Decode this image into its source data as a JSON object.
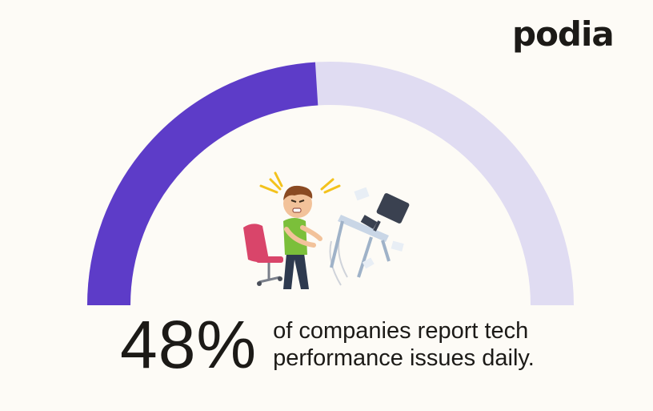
{
  "brand": {
    "logo_text": "podia"
  },
  "chart_data": {
    "type": "gauge",
    "value": 48,
    "max": 100,
    "value_label": "48%",
    "description_line1": "of companies report tech",
    "description_line2": "performance issues daily.",
    "colors": {
      "fill": "#5d3cc8",
      "track": "#e0dcf2",
      "background": "#fdfbf6"
    }
  },
  "illustration": {
    "icon": "frustrated-office-worker-icon"
  }
}
